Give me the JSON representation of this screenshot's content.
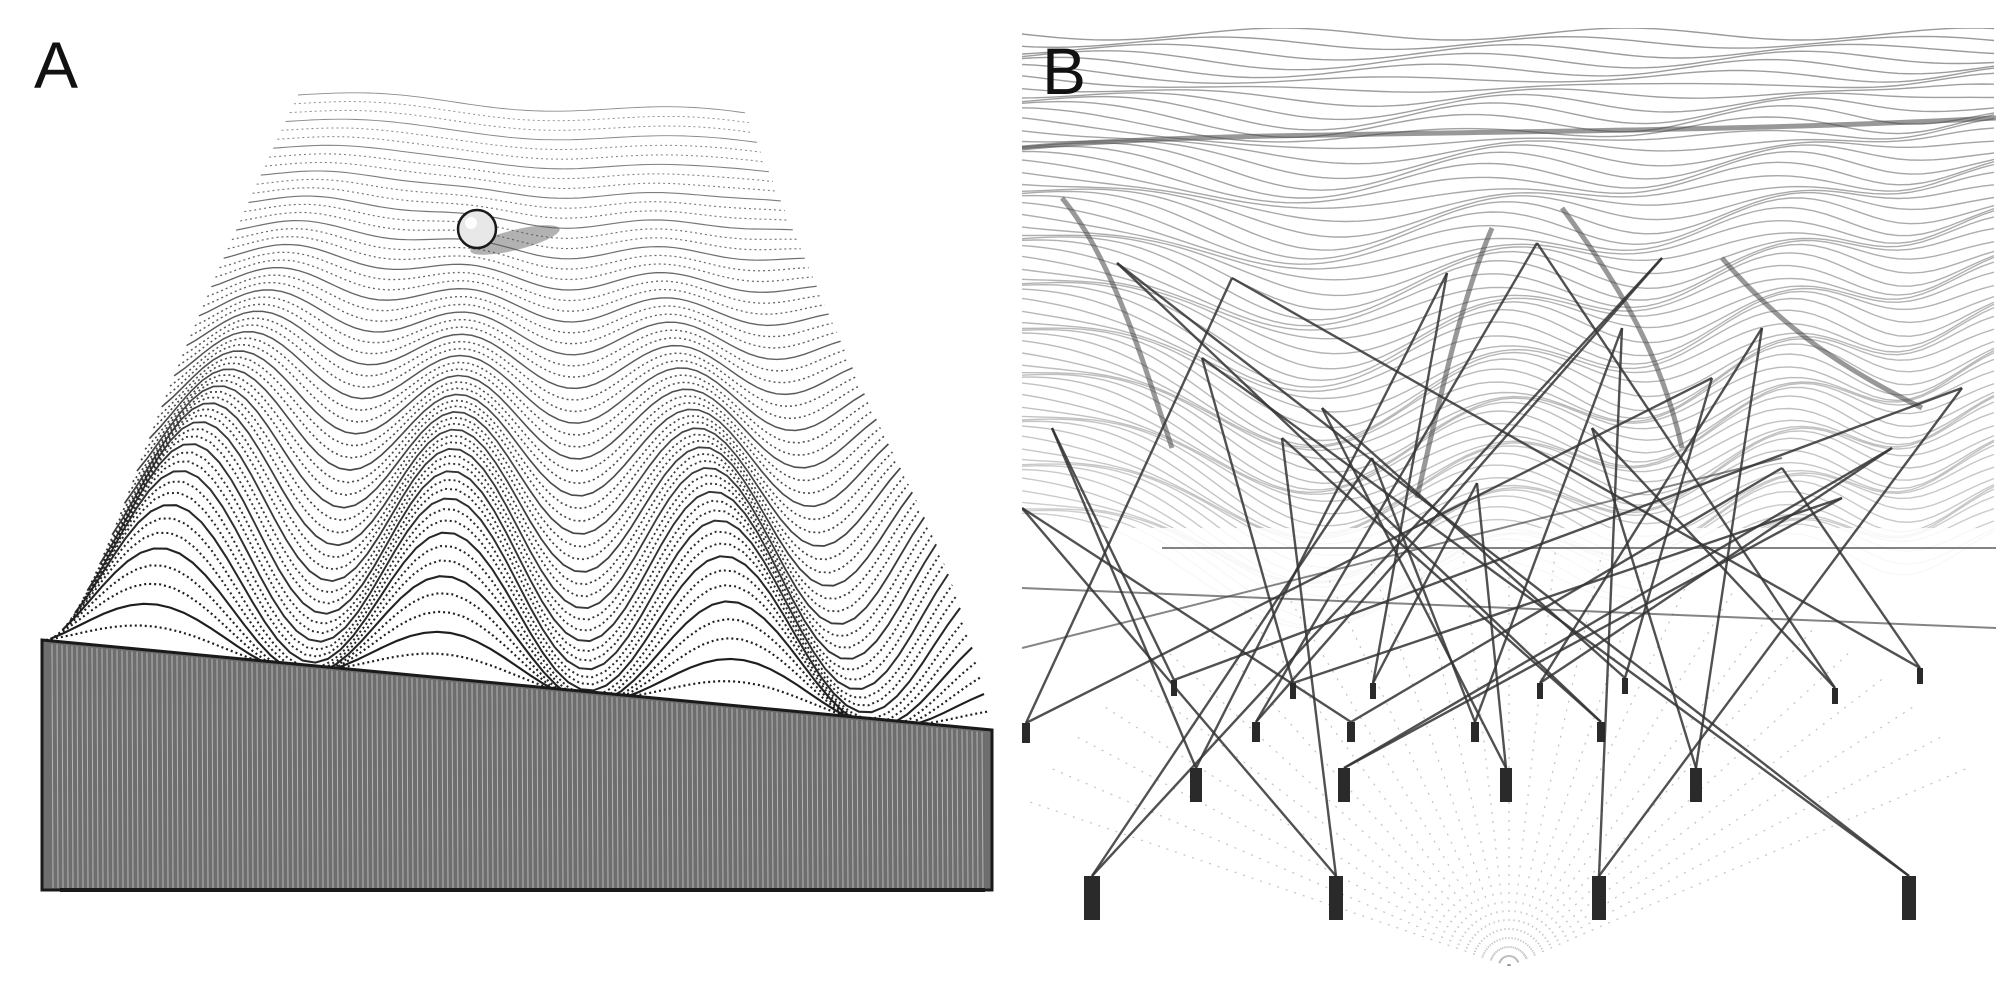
{
  "panels": {
    "a": {
      "label": "A"
    },
    "b": {
      "label": "B"
    }
  },
  "colors": {
    "ink": "#1a1a1a",
    "wire": "#333333",
    "ball": "#e8e8e8",
    "paper": "#ffffff",
    "shade": "#555555"
  },
  "icons": {
    "ball": "ball-icon",
    "peg": "peg-icon"
  }
}
